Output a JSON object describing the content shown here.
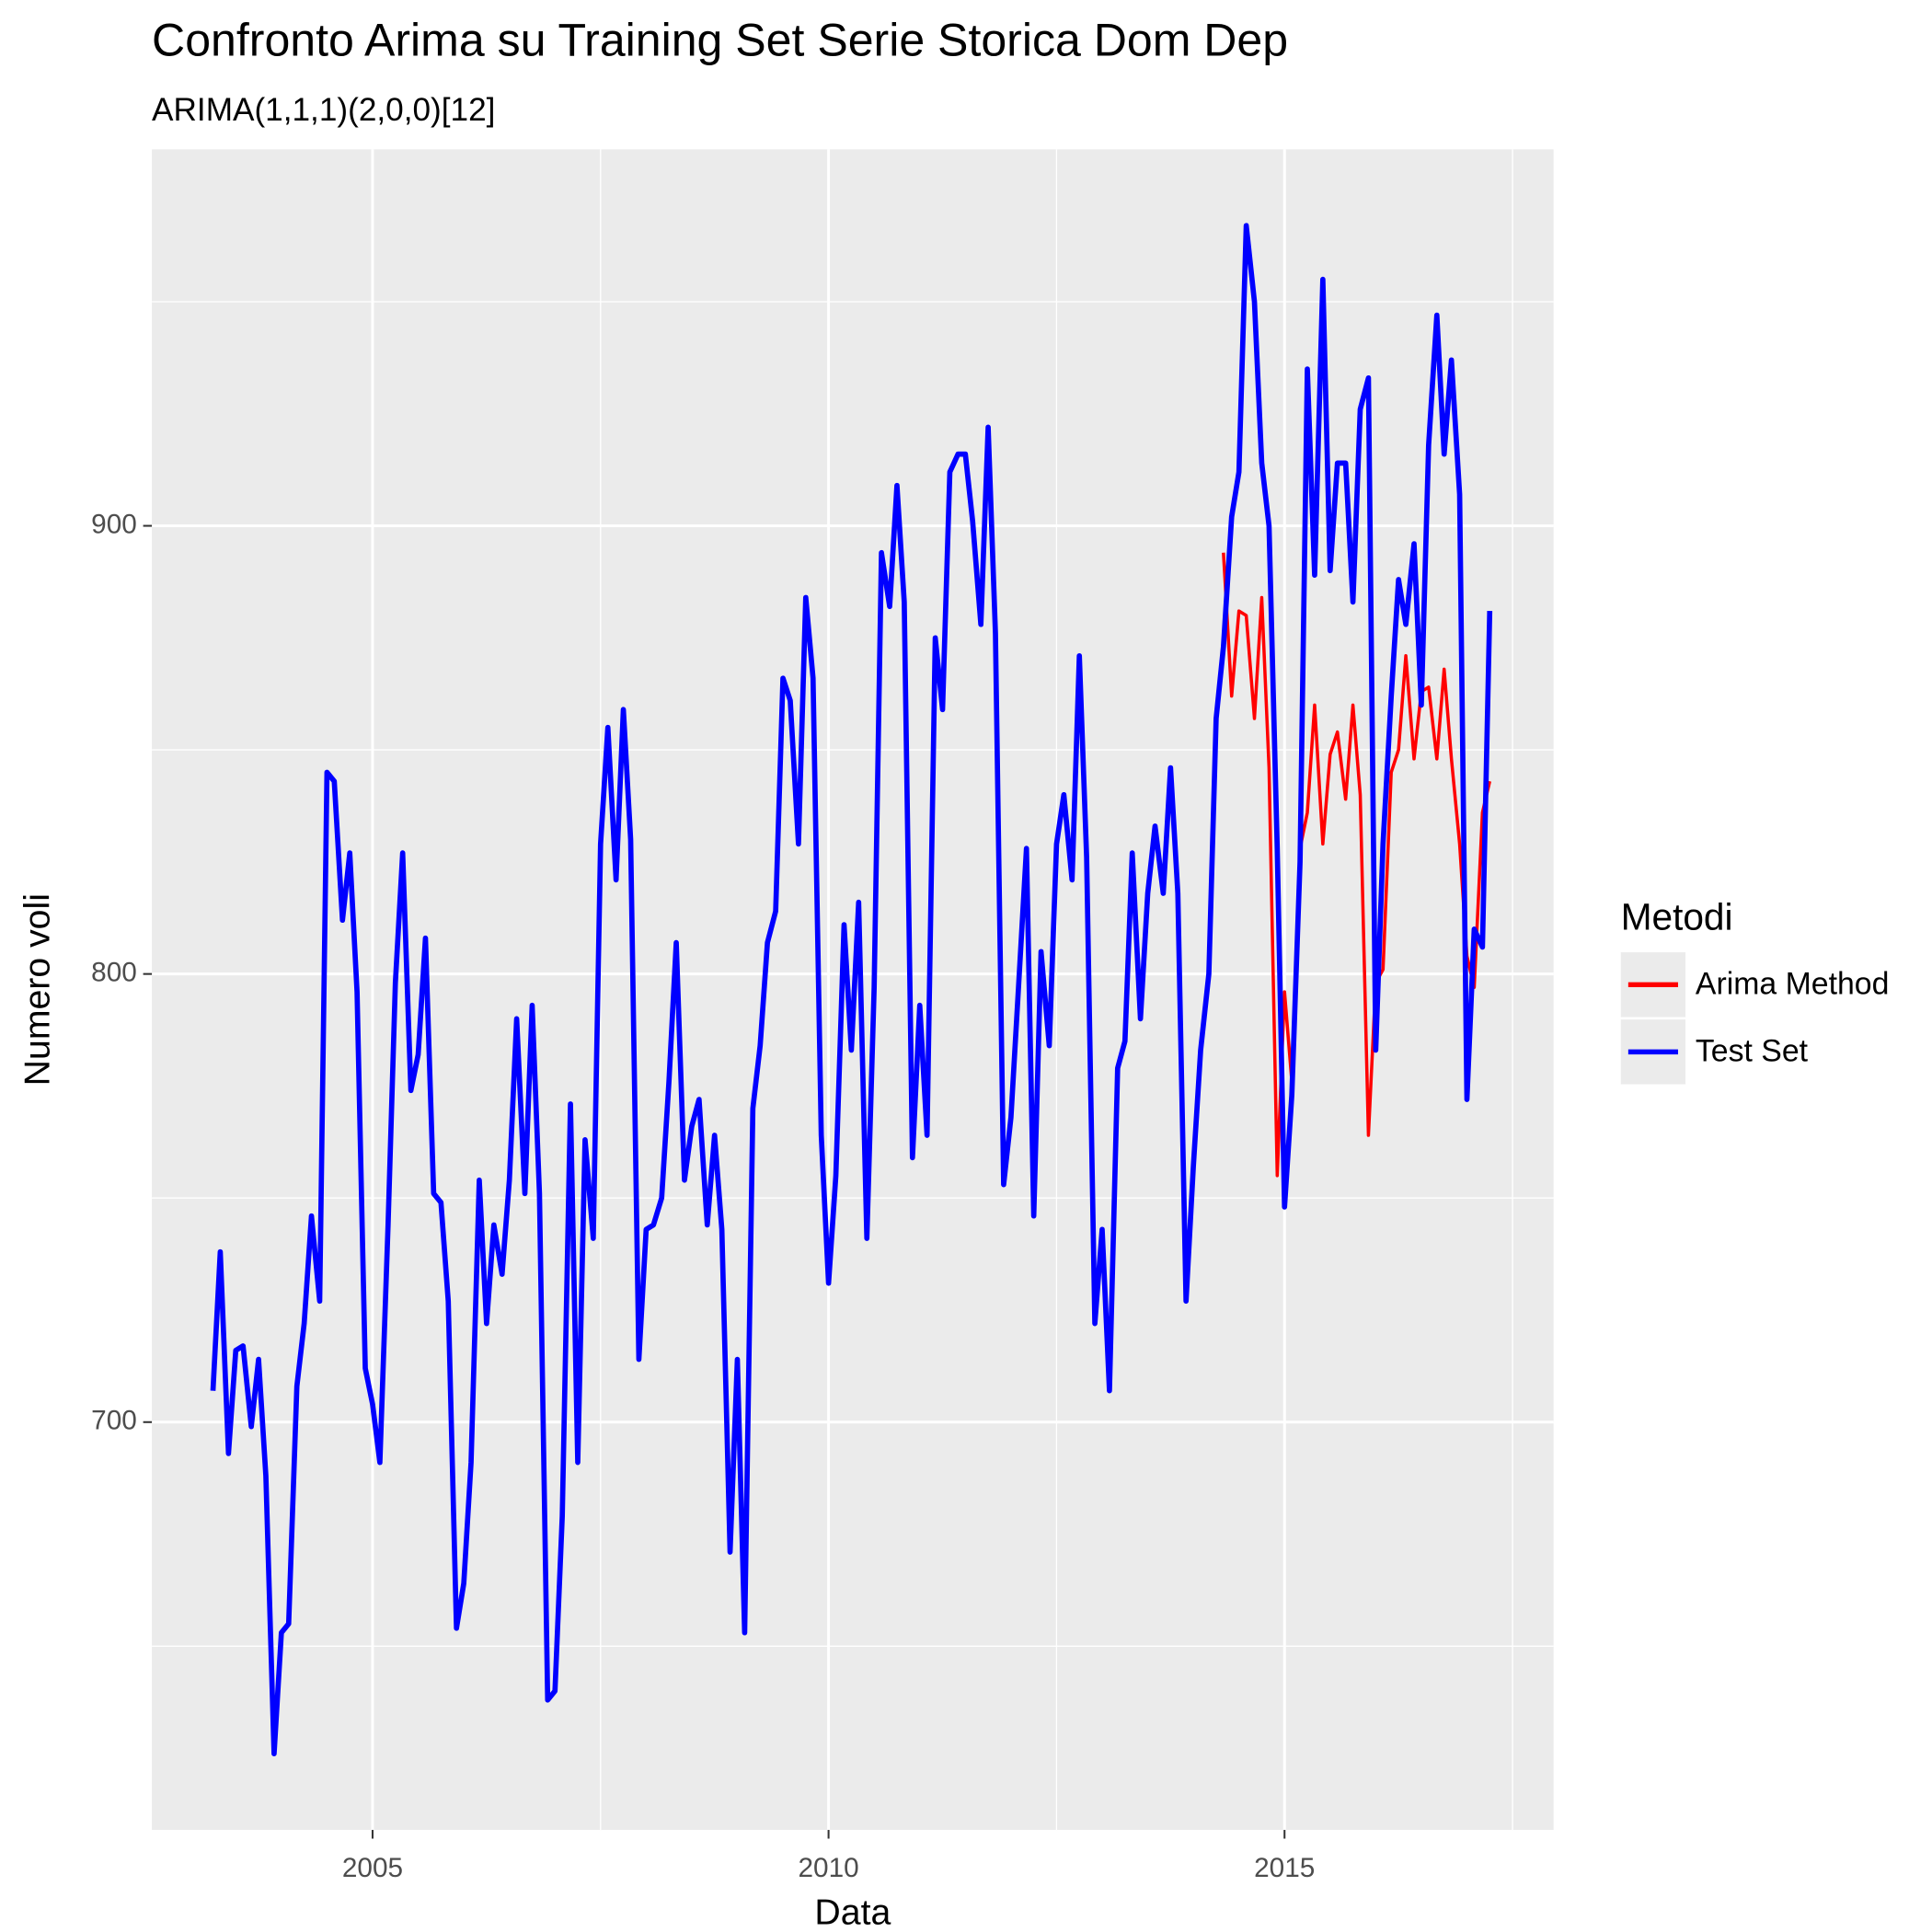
{
  "chart_data": {
    "type": "line",
    "title": "Confronto Arima su Training Set Serie Storica Dom Dep",
    "subtitle": "ARIMA(1,1,1)(2,0,0)[12]",
    "x_label": "Data",
    "y_label": "Numero voli",
    "legend_title": "Metodi",
    "legend_position": "right",
    "grid": true,
    "xlim": [
      2002.58,
      2017.95
    ],
    "ylim": [
      609,
      984
    ],
    "xticks": [
      2005,
      2010,
      2015
    ],
    "yticks": [
      700,
      800,
      900
    ],
    "series": [
      {
        "name": "Arima Method",
        "color": "#ff0000",
        "x": [
          2014.33,
          2014.42,
          2014.5,
          2014.58,
          2014.67,
          2014.75,
          2014.83,
          2014.92,
          2015.0,
          2015.08,
          2015.17,
          2015.25,
          2015.33,
          2015.42,
          2015.5,
          2015.58,
          2015.67,
          2015.75,
          2015.83,
          2015.92,
          2016.0,
          2016.08,
          2016.17,
          2016.25,
          2016.33,
          2016.42,
          2016.5,
          2016.58,
          2016.67,
          2016.75,
          2016.83,
          2016.92,
          2017.0,
          2017.08,
          2017.17,
          2017.25
        ],
        "values": [
          894,
          862,
          881,
          880,
          857,
          884,
          846,
          755,
          796,
          776,
          828,
          836,
          860,
          829,
          849,
          854,
          839,
          860,
          840,
          764,
          798,
          801,
          845,
          850,
          871,
          848,
          863,
          864,
          848,
          868,
          848,
          829,
          804,
          797,
          836,
          843
        ]
      },
      {
        "name": "Test Set",
        "color": "#0000ff",
        "x": [
          2003.25,
          2003.33,
          2003.42,
          2003.5,
          2003.58,
          2003.67,
          2003.75,
          2003.83,
          2003.92,
          2004.0,
          2004.08,
          2004.17,
          2004.25,
          2004.33,
          2004.42,
          2004.5,
          2004.58,
          2004.67,
          2004.75,
          2004.83,
          2004.92,
          2005.0,
          2005.08,
          2005.17,
          2005.25,
          2005.33,
          2005.42,
          2005.5,
          2005.58,
          2005.67,
          2005.75,
          2005.83,
          2005.92,
          2006.0,
          2006.08,
          2006.17,
          2006.25,
          2006.33,
          2006.42,
          2006.5,
          2006.58,
          2006.67,
          2006.75,
          2006.83,
          2006.92,
          2007.0,
          2007.08,
          2007.17,
          2007.25,
          2007.33,
          2007.42,
          2007.5,
          2007.58,
          2007.67,
          2007.75,
          2007.83,
          2007.92,
          2008.0,
          2008.08,
          2008.17,
          2008.25,
          2008.33,
          2008.42,
          2008.5,
          2008.58,
          2008.67,
          2008.75,
          2008.83,
          2008.92,
          2009.0,
          2009.08,
          2009.17,
          2009.25,
          2009.33,
          2009.42,
          2009.5,
          2009.58,
          2009.67,
          2009.75,
          2009.83,
          2009.92,
          2010.0,
          2010.08,
          2010.17,
          2010.25,
          2010.33,
          2010.42,
          2010.5,
          2010.58,
          2010.67,
          2010.75,
          2010.83,
          2010.92,
          2011.0,
          2011.08,
          2011.17,
          2011.25,
          2011.33,
          2011.42,
          2011.5,
          2011.58,
          2011.67,
          2011.75,
          2011.83,
          2011.92,
          2012.0,
          2012.08,
          2012.17,
          2012.25,
          2012.33,
          2012.42,
          2012.5,
          2012.58,
          2012.67,
          2012.75,
          2012.83,
          2012.92,
          2013.0,
          2013.08,
          2013.17,
          2013.25,
          2013.33,
          2013.42,
          2013.5,
          2013.58,
          2013.67,
          2013.75,
          2013.83,
          2013.92,
          2014.0,
          2014.08,
          2014.17,
          2014.25,
          2014.33,
          2014.42,
          2014.5,
          2014.58,
          2014.67,
          2014.75,
          2014.83,
          2014.92,
          2015.0,
          2015.08,
          2015.17,
          2015.25,
          2015.33,
          2015.42,
          2015.5,
          2015.58,
          2015.67,
          2015.75,
          2015.83,
          2015.92,
          2016.0,
          2016.08,
          2016.17,
          2016.25,
          2016.33,
          2016.42,
          2016.5,
          2016.58,
          2016.67,
          2016.75,
          2016.83,
          2016.92,
          2017.0,
          2017.08,
          2017.17,
          2017.25
        ],
        "values": [
          707,
          738,
          693,
          716,
          717,
          699,
          714,
          688,
          626,
          653,
          655,
          708,
          722,
          746,
          727,
          845,
          843,
          812,
          827,
          796,
          712,
          704,
          691,
          744,
          798,
          827,
          774,
          782,
          808,
          751,
          749,
          727,
          654,
          664,
          691,
          754,
          722,
          744,
          733,
          754,
          790,
          751,
          793,
          751,
          638,
          640,
          679,
          771,
          691,
          763,
          741,
          829,
          855,
          821,
          859,
          830,
          714,
          743,
          744,
          750,
          776,
          807,
          754,
          766,
          772,
          744,
          764,
          743,
          671,
          714,
          653,
          770,
          784,
          807,
          814,
          866,
          861,
          829,
          884,
          866,
          764,
          731,
          755,
          811,
          783,
          816,
          741,
          797,
          894,
          882,
          909,
          883,
          759,
          793,
          764,
          875,
          859,
          912,
          916,
          916,
          901,
          878,
          922,
          876,
          753,
          768,
          796,
          828,
          746,
          805,
          784,
          829,
          840,
          821,
          871,
          826,
          722,
          743,
          707,
          779,
          785,
          827,
          790,
          818,
          833,
          818,
          846,
          818,
          727,
          757,
          783,
          800,
          857,
          873,
          902,
          912,
          967,
          950,
          914,
          900,
          828,
          748,
          773,
          825,
          935,
          889,
          955,
          890,
          914,
          914,
          883,
          926,
          933,
          783,
          829,
          862,
          888,
          878,
          896,
          860,
          918,
          947,
          916,
          937,
          907,
          772,
          810,
          806,
          881
        ]
      }
    ]
  }
}
